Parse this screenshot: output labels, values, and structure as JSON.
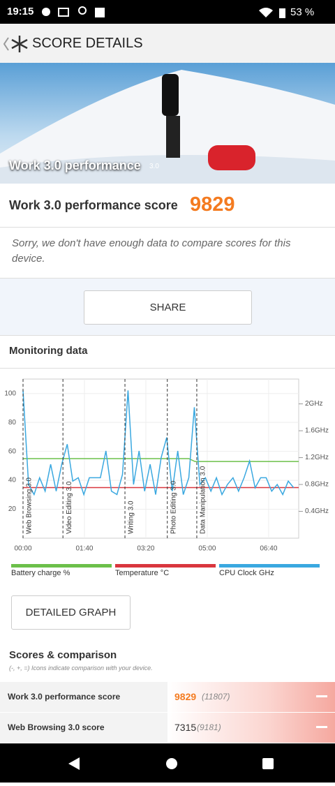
{
  "status_bar": {
    "time": "19:15",
    "battery": "53 %"
  },
  "header": {
    "title": "SCORE DETAILS"
  },
  "hero": {
    "title": "Work 3.0 performance",
    "version": "3.0"
  },
  "score": {
    "label": "Work 3.0 performance score",
    "value": 9829
  },
  "note": "Sorry, we don't have enough data to compare scores for this device.",
  "share_button": "SHARE",
  "monitoring": {
    "title": "Monitoring data"
  },
  "chart_data": {
    "type": "line",
    "xlim": [
      0,
      449
    ],
    "xticks": [
      {
        "value": 0,
        "label": "00:00"
      },
      {
        "value": 100,
        "label": "01:40"
      },
      {
        "value": 200,
        "label": "03:20"
      },
      {
        "value": 300,
        "label": "05:00"
      },
      {
        "value": 400,
        "label": "06:40"
      }
    ],
    "ylim": [
      0,
      110
    ],
    "yticks": [
      20,
      40,
      60,
      80,
      100
    ],
    "y2lim": [
      0,
      2.37
    ],
    "y2ticks": [
      {
        "value": 0.4,
        "label": "0.4GHz"
      },
      {
        "value": 0.8,
        "label": "0.8GHz"
      },
      {
        "value": 1.2,
        "label": "1.2GHz"
      },
      {
        "value": 1.6,
        "label": "1.6GHz"
      },
      {
        "value": 2,
        "label": "2GHz"
      }
    ],
    "grid": true,
    "annotations": [
      {
        "x": 0,
        "text": "Web Browsing 3.0"
      },
      {
        "x": 65,
        "text": "Video Editing 3.0"
      },
      {
        "x": 166,
        "text": "Writing 3.0"
      },
      {
        "x": 235,
        "text": "Photo Editing 3.0"
      },
      {
        "x": 283,
        "text": "Data Manipulation 3.0"
      }
    ],
    "series": [
      {
        "name": "Battery charge %",
        "color": "#6cc04a",
        "x": [
          0,
          270,
          280,
          449
        ],
        "values": [
          55,
          55,
          53,
          53
        ]
      },
      {
        "name": "Temperature °C",
        "color": "#d9363e",
        "x": [
          0,
          449
        ],
        "values": [
          35,
          35
        ]
      },
      {
        "name": "CPU Clock GHz",
        "color": "#3aa8e0",
        "axis": "y2",
        "x": [
          0,
          9,
          18,
          27,
          36,
          45,
          54,
          63,
          72,
          81,
          90,
          99,
          108,
          117,
          126,
          135,
          144,
          153,
          162,
          171,
          180,
          189,
          198,
          207,
          216,
          225,
          234,
          243,
          252,
          261,
          270,
          279,
          288,
          297,
          306,
          315,
          324,
          333,
          342,
          351,
          360,
          369,
          378,
          387,
          396,
          405,
          414,
          423,
          432,
          441
        ],
        "values": [
          2.2,
          0.8,
          0.65,
          0.9,
          0.7,
          1.1,
          0.7,
          1.1,
          1.4,
          0.85,
          0.9,
          0.65,
          0.9,
          0.9,
          0.9,
          1.3,
          0.7,
          0.65,
          0.95,
          2.2,
          0.8,
          1.3,
          0.7,
          1.1,
          0.65,
          1.2,
          1.5,
          0.7,
          1.3,
          0.65,
          0.9,
          1.95,
          0.8,
          0.9,
          0.7,
          0.9,
          0.65,
          0.8,
          0.9,
          0.7,
          0.9,
          1.15,
          0.75,
          0.9,
          0.9,
          0.7,
          0.8,
          0.65,
          0.85,
          0.75
        ]
      }
    ]
  },
  "detailed_button": "DETAILED GRAPH",
  "scores": {
    "title": "Scores & comparison",
    "subtitle": "(-, +, =) Icons indicate comparison with your device.",
    "rows": [
      {
        "label": "Work 3.0 performance score",
        "score": 9829,
        "compare": "(11807)"
      },
      {
        "label": "Web Browsing 3.0 score",
        "score": 7315,
        "compare": "(9181)"
      }
    ]
  }
}
